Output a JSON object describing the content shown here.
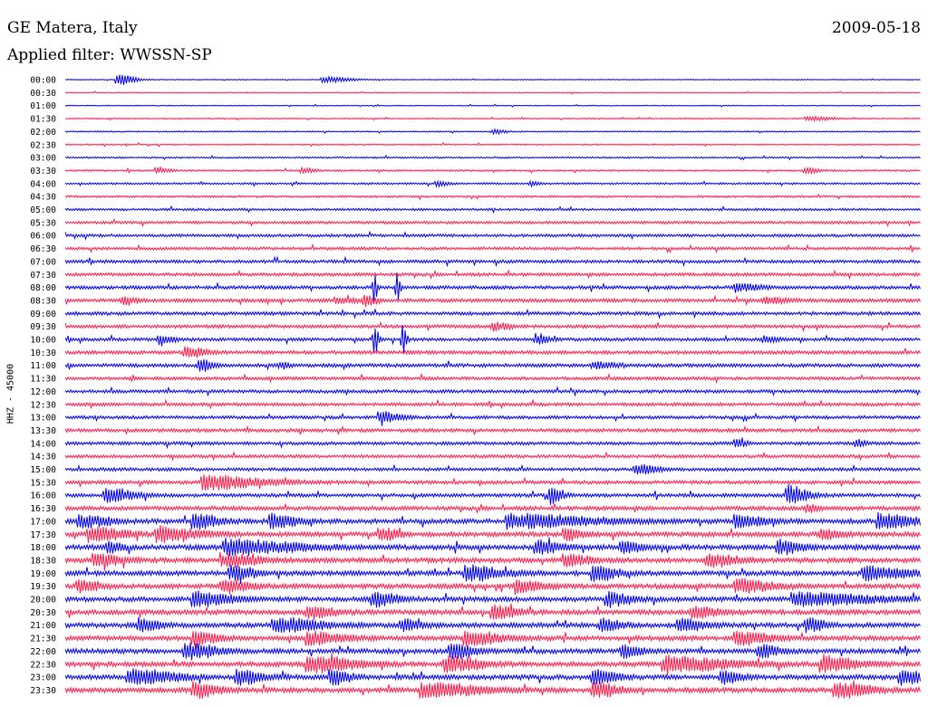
{
  "header": {
    "station": "GE Matera, Italy",
    "date": "2009-05-18",
    "filter_prefix": "Applied filter:",
    "filter_name": "WWSSN-SP"
  },
  "axis_label": "HHZ - 45000",
  "colors": {
    "even_hour_trace": "#0000ee",
    "half_hour_trace": "#ff1a4a",
    "text": "#000000",
    "background": "#ffffff"
  },
  "chart_data": {
    "type": "line",
    "plot_kind": "helicorder seismogram",
    "rows": [
      "00:00",
      "00:30",
      "01:00",
      "01:30",
      "02:00",
      "02:30",
      "03:00",
      "03:30",
      "04:00",
      "04:30",
      "05:00",
      "05:30",
      "06:00",
      "06:30",
      "07:00",
      "07:30",
      "08:00",
      "08:30",
      "09:00",
      "09:30",
      "10:00",
      "10:30",
      "11:00",
      "11:30",
      "12:00",
      "12:30",
      "13:00",
      "13:30",
      "14:00",
      "14:30",
      "15:00",
      "15:30",
      "16:00",
      "16:30",
      "17:00",
      "17:30",
      "18:00",
      "18:30",
      "19:00",
      "19:30",
      "20:00",
      "20:30",
      "21:00",
      "21:30",
      "22:00",
      "22:30",
      "23:00",
      "23:30"
    ],
    "row_minutes": 30,
    "color_pattern": [
      "blue",
      "red"
    ],
    "background_level": [
      0.05,
      0.06,
      0.06,
      0.07,
      0.08,
      0.09,
      0.1,
      0.11,
      0.12,
      0.13,
      0.15,
      0.17,
      0.18,
      0.18,
      0.2,
      0.2,
      0.21,
      0.22,
      0.21,
      0.21,
      0.2,
      0.22,
      0.22,
      0.2,
      0.2,
      0.2,
      0.2,
      0.22,
      0.2,
      0.2,
      0.2,
      0.22,
      0.22,
      0.25,
      0.3,
      0.3,
      0.32,
      0.3,
      0.3,
      0.3,
      0.3,
      0.3,
      0.3,
      0.3,
      0.3,
      0.3,
      0.3,
      0.3
    ],
    "events": [
      {
        "row": 0,
        "minute": 1.8,
        "amp": 0.95,
        "dur": 0.7
      },
      {
        "row": 0,
        "minute": 9.0,
        "amp": 0.45,
        "dur": 1.2
      },
      {
        "row": 3,
        "minute": 26.0,
        "amp": 0.35,
        "dur": 1.0
      },
      {
        "row": 4,
        "minute": 15.0,
        "amp": 0.4,
        "dur": 0.5
      },
      {
        "row": 7,
        "minute": 3.2,
        "amp": 0.45,
        "dur": 0.6
      },
      {
        "row": 7,
        "minute": 8.3,
        "amp": 0.4,
        "dur": 0.5
      },
      {
        "row": 7,
        "minute": 26.0,
        "amp": 0.45,
        "dur": 0.5
      },
      {
        "row": 8,
        "minute": 13.0,
        "amp": 0.35,
        "dur": 0.5
      },
      {
        "row": 8,
        "minute": 16.3,
        "amp": 0.45,
        "dur": 0.3
      },
      {
        "row": 16,
        "minute": 23.5,
        "amp": 0.6,
        "dur": 1.0
      },
      {
        "row": 16,
        "minute": 10.8,
        "amp": 2.8,
        "dur": 0.15
      },
      {
        "row": 16,
        "minute": 11.6,
        "amp": 2.6,
        "dur": 0.15
      },
      {
        "row": 17,
        "minute": 2.0,
        "amp": 0.7,
        "dur": 0.5
      },
      {
        "row": 17,
        "minute": 9.5,
        "amp": 0.55,
        "dur": 0.7
      },
      {
        "row": 17,
        "minute": 10.5,
        "amp": 0.9,
        "dur": 0.5
      },
      {
        "row": 17,
        "minute": 24.5,
        "amp": 0.6,
        "dur": 1.0
      },
      {
        "row": 19,
        "minute": 15.0,
        "amp": 0.7,
        "dur": 0.6
      },
      {
        "row": 20,
        "minute": 3.3,
        "amp": 0.8,
        "dur": 0.6
      },
      {
        "row": 20,
        "minute": 16.5,
        "amp": 0.9,
        "dur": 0.5
      },
      {
        "row": 20,
        "minute": 24.5,
        "amp": 0.6,
        "dur": 0.5
      },
      {
        "row": 20,
        "minute": 10.8,
        "amp": 3.2,
        "dur": 0.18
      },
      {
        "row": 20,
        "minute": 11.8,
        "amp": 3.0,
        "dur": 0.18
      },
      {
        "row": 21,
        "minute": 4.2,
        "amp": 0.9,
        "dur": 0.8
      },
      {
        "row": 22,
        "minute": 4.7,
        "amp": 1.0,
        "dur": 0.5
      },
      {
        "row": 22,
        "minute": 7.5,
        "amp": 0.5,
        "dur": 0.4
      },
      {
        "row": 22,
        "minute": 18.5,
        "amp": 0.5,
        "dur": 1.0
      },
      {
        "row": 26,
        "minute": 11.0,
        "amp": 0.9,
        "dur": 0.9
      },
      {
        "row": 28,
        "minute": 23.5,
        "amp": 0.7,
        "dur": 0.4
      },
      {
        "row": 28,
        "minute": 27.7,
        "amp": 0.6,
        "dur": 0.4
      },
      {
        "row": 30,
        "minute": 20.0,
        "amp": 0.8,
        "dur": 0.9
      },
      {
        "row": 31,
        "minute": 4.8,
        "amp": 1.2,
        "dur": 2.5
      },
      {
        "row": 32,
        "minute": 1.4,
        "amp": 1.1,
        "dur": 1.2
      },
      {
        "row": 32,
        "minute": 17.0,
        "amp": 1.3,
        "dur": 0.5
      },
      {
        "row": 32,
        "minute": 25.3,
        "amp": 1.6,
        "dur": 0.9
      },
      {
        "row": 33,
        "minute": 26.0,
        "amp": 0.6,
        "dur": 0.5
      },
      {
        "row": 34,
        "minute": 0.5,
        "amp": 1.0,
        "dur": 1.2
      },
      {
        "row": 34,
        "minute": 4.5,
        "amp": 1.3,
        "dur": 1.0
      },
      {
        "row": 34,
        "minute": 7.2,
        "amp": 1.2,
        "dur": 1.0
      },
      {
        "row": 34,
        "minute": 15.5,
        "amp": 1.1,
        "dur": 3.5
      },
      {
        "row": 34,
        "minute": 23.5,
        "amp": 1.0,
        "dur": 1.2
      },
      {
        "row": 34,
        "minute": 28.5,
        "amp": 1.3,
        "dur": 1.5
      },
      {
        "row": 35,
        "minute": 0.8,
        "amp": 1.1,
        "dur": 1.5
      },
      {
        "row": 35,
        "minute": 3.2,
        "amp": 1.1,
        "dur": 1.8
      },
      {
        "row": 35,
        "minute": 11.0,
        "amp": 1.0,
        "dur": 0.8
      },
      {
        "row": 35,
        "minute": 17.5,
        "amp": 0.9,
        "dur": 0.7
      },
      {
        "row": 35,
        "minute": 26.5,
        "amp": 0.8,
        "dur": 0.8
      },
      {
        "row": 36,
        "minute": 1.5,
        "amp": 0.8,
        "dur": 0.6
      },
      {
        "row": 36,
        "minute": 5.6,
        "amp": 1.2,
        "dur": 3.0
      },
      {
        "row": 36,
        "minute": 16.5,
        "amp": 1.0,
        "dur": 1.0
      },
      {
        "row": 36,
        "minute": 19.5,
        "amp": 1.1,
        "dur": 0.8
      },
      {
        "row": 36,
        "minute": 25.0,
        "amp": 1.1,
        "dur": 0.9
      },
      {
        "row": 37,
        "minute": 1.0,
        "amp": 1.0,
        "dur": 1.2
      },
      {
        "row": 37,
        "minute": 5.5,
        "amp": 1.0,
        "dur": 1.5
      },
      {
        "row": 37,
        "minute": 17.5,
        "amp": 1.0,
        "dur": 1.0
      },
      {
        "row": 37,
        "minute": 22.5,
        "amp": 1.0,
        "dur": 1.2
      },
      {
        "row": 38,
        "minute": 5.8,
        "amp": 1.1,
        "dur": 1.0
      },
      {
        "row": 38,
        "minute": 14.0,
        "amp": 1.2,
        "dur": 1.6
      },
      {
        "row": 38,
        "minute": 18.5,
        "amp": 1.2,
        "dur": 1.0
      },
      {
        "row": 38,
        "minute": 28.0,
        "amp": 1.1,
        "dur": 1.8
      },
      {
        "row": 39,
        "minute": 0.5,
        "amp": 1.0,
        "dur": 0.8
      },
      {
        "row": 39,
        "minute": 5.5,
        "amp": 1.0,
        "dur": 1.2
      },
      {
        "row": 39,
        "minute": 15.8,
        "amp": 1.0,
        "dur": 1.0
      },
      {
        "row": 39,
        "minute": 23.5,
        "amp": 1.0,
        "dur": 1.5
      },
      {
        "row": 40,
        "minute": 4.5,
        "amp": 1.2,
        "dur": 1.5
      },
      {
        "row": 40,
        "minute": 10.8,
        "amp": 1.2,
        "dur": 1.0
      },
      {
        "row": 40,
        "minute": 19.0,
        "amp": 1.1,
        "dur": 1.0
      },
      {
        "row": 40,
        "minute": 25.5,
        "amp": 1.0,
        "dur": 3.5
      },
      {
        "row": 41,
        "minute": 8.5,
        "amp": 1.0,
        "dur": 1.0
      },
      {
        "row": 41,
        "minute": 15.0,
        "amp": 1.0,
        "dur": 1.0
      },
      {
        "row": 41,
        "minute": 22.0,
        "amp": 0.9,
        "dur": 1.0
      },
      {
        "row": 42,
        "minute": 2.6,
        "amp": 1.1,
        "dur": 0.8
      },
      {
        "row": 42,
        "minute": 7.3,
        "amp": 1.1,
        "dur": 2.0
      },
      {
        "row": 42,
        "minute": 11.8,
        "amp": 1.0,
        "dur": 0.8
      },
      {
        "row": 42,
        "minute": 18.8,
        "amp": 1.1,
        "dur": 0.8
      },
      {
        "row": 42,
        "minute": 21.5,
        "amp": 1.1,
        "dur": 1.0
      },
      {
        "row": 42,
        "minute": 26.0,
        "amp": 1.0,
        "dur": 0.8
      },
      {
        "row": 43,
        "minute": 4.5,
        "amp": 1.0,
        "dur": 1.0
      },
      {
        "row": 43,
        "minute": 8.5,
        "amp": 1.0,
        "dur": 1.5
      },
      {
        "row": 43,
        "minute": 14.0,
        "amp": 1.1,
        "dur": 1.5
      },
      {
        "row": 43,
        "minute": 23.5,
        "amp": 1.0,
        "dur": 1.5
      },
      {
        "row": 44,
        "minute": 4.2,
        "amp": 1.2,
        "dur": 1.4
      },
      {
        "row": 44,
        "minute": 13.5,
        "amp": 1.2,
        "dur": 1.0
      },
      {
        "row": 44,
        "minute": 19.5,
        "amp": 1.0,
        "dur": 0.8
      },
      {
        "row": 44,
        "minute": 24.3,
        "amp": 1.1,
        "dur": 0.8
      },
      {
        "row": 45,
        "minute": 8.5,
        "amp": 1.3,
        "dur": 2.0
      },
      {
        "row": 45,
        "minute": 13.3,
        "amp": 1.2,
        "dur": 1.5
      },
      {
        "row": 45,
        "minute": 21.0,
        "amp": 1.2,
        "dur": 3.0
      },
      {
        "row": 45,
        "minute": 26.5,
        "amp": 1.2,
        "dur": 1.5
      },
      {
        "row": 46,
        "minute": 2.2,
        "amp": 1.2,
        "dur": 2.0
      },
      {
        "row": 46,
        "minute": 6.0,
        "amp": 1.1,
        "dur": 1.2
      },
      {
        "row": 46,
        "minute": 9.3,
        "amp": 1.2,
        "dur": 0.8
      },
      {
        "row": 46,
        "minute": 18.5,
        "amp": 1.2,
        "dur": 1.0
      },
      {
        "row": 46,
        "minute": 23.0,
        "amp": 1.1,
        "dur": 0.8
      },
      {
        "row": 46,
        "minute": 29.3,
        "amp": 1.2,
        "dur": 0.8
      },
      {
        "row": 47,
        "minute": 4.5,
        "amp": 1.2,
        "dur": 1.0
      },
      {
        "row": 47,
        "minute": 12.5,
        "amp": 1.1,
        "dur": 2.5
      },
      {
        "row": 47,
        "minute": 18.5,
        "amp": 1.3,
        "dur": 1.0
      },
      {
        "row": 47,
        "minute": 27.0,
        "amp": 1.2,
        "dur": 1.5
      }
    ]
  }
}
